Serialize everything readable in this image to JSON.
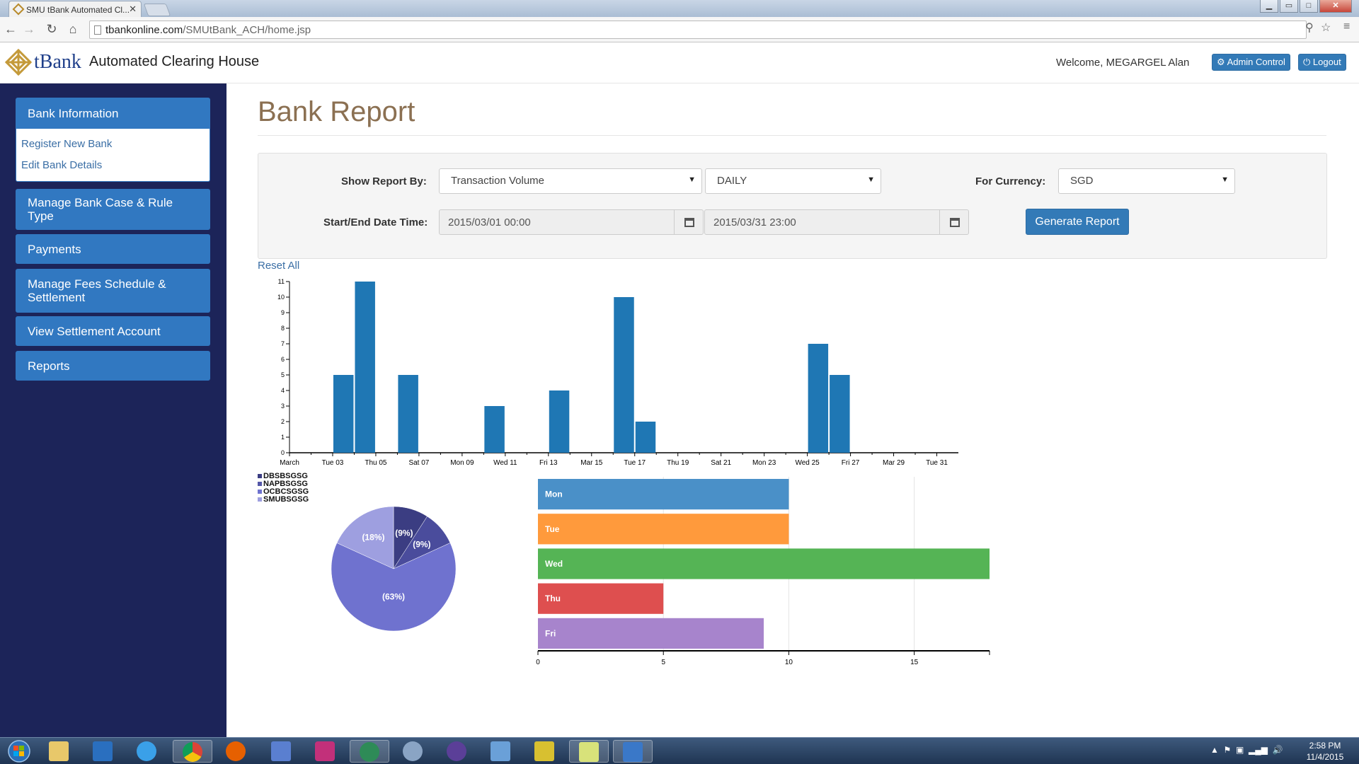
{
  "browser": {
    "tab_title": "SMU tBank Automated Cl...",
    "url_host": "tbankonline.com",
    "url_path": "/SMUtBank_ACH/home.jsp"
  },
  "header": {
    "logo_text": "tBank",
    "app_title": "Automated Clearing House",
    "welcome": "Welcome, MEGARGEL Alan",
    "admin_label": "Admin Control",
    "logout_label": "Logout"
  },
  "sidebar": {
    "items": [
      {
        "label": "Bank Information"
      },
      {
        "label": "Manage Bank Case & Rule Type"
      },
      {
        "label": "Payments"
      },
      {
        "label": "Manage Fees Schedule & Settlement"
      },
      {
        "label": "View Settlement Account"
      },
      {
        "label": "Reports"
      }
    ],
    "sub_items": [
      "Register New Bank",
      "Edit Bank Details"
    ]
  },
  "main": {
    "title": "Bank Report",
    "show_report_by_label": "Show Report By:",
    "report_by_value": "Transaction Volume",
    "frequency_value": "DAILY",
    "currency_label": "For Currency:",
    "currency_value": "SGD",
    "date_label": "Start/End Date Time:",
    "start_date": "2015/03/01 00:00",
    "end_date": "2015/03/31 23:00",
    "generate_label": "Generate Report",
    "reset_label": "Reset All"
  },
  "colors": {
    "bar": "#1f77b4",
    "sidebar_bg": "#1c2459",
    "sidebar_item": "#3178c1",
    "title": "#8b7052"
  },
  "chart_data": [
    {
      "type": "bar",
      "x_tick_labels": [
        "March",
        "Tue 03",
        "Thu 05",
        "Sat 07",
        "Mon 09",
        "Wed 11",
        "Fri 13",
        "Mar 15",
        "Tue 17",
        "Thu 19",
        "Sat 21",
        "Mon 23",
        "Wed 25",
        "Fri 27",
        "Mar 29",
        "Tue 31"
      ],
      "x_domain": [
        "2015-03-01",
        "2015-04-01"
      ],
      "points": [
        {
          "date": "2015-03-03",
          "value": 5
        },
        {
          "date": "2015-03-04",
          "value": 11
        },
        {
          "date": "2015-03-06",
          "value": 5
        },
        {
          "date": "2015-03-10",
          "value": 3
        },
        {
          "date": "2015-03-13",
          "value": 4
        },
        {
          "date": "2015-03-16",
          "value": 10
        },
        {
          "date": "2015-03-17",
          "value": 2
        },
        {
          "date": "2015-03-25",
          "value": 7
        },
        {
          "date": "2015-03-26",
          "value": 5
        }
      ],
      "y_ticks": [
        0,
        1,
        2,
        3,
        4,
        5,
        6,
        7,
        8,
        9,
        10,
        11
      ],
      "ylim": [
        0,
        11
      ]
    },
    {
      "type": "pie",
      "legend": [
        "DBSBSGSG",
        "NAPBSGSG",
        "OCBCSGSG",
        "SMUBSGSG"
      ],
      "legend_colors": [
        "#3b3d82",
        "#5457a8",
        "#6f72cf",
        "#9e9fe0"
      ],
      "slices": [
        {
          "name": "DBSBSGSG",
          "percent": 9,
          "label": "(9%)",
          "color": "#3b3d82"
        },
        {
          "name": "NAPBSGSG",
          "percent": 9,
          "label": "(9%)",
          "color": "#4a4c9c"
        },
        {
          "name": "OCBCSGSG",
          "percent": 63,
          "label": "(63%)",
          "color": "#6f72cf"
        },
        {
          "name": "SMUBSGSG",
          "percent": 18,
          "label": "(18%)",
          "color": "#9e9fe0"
        }
      ]
    },
    {
      "type": "bar",
      "orientation": "horizontal",
      "categories": [
        "Mon",
        "Tue",
        "Wed",
        "Thu",
        "Fri"
      ],
      "values": [
        10,
        10,
        18,
        5,
        9
      ],
      "colors": [
        "#4a90c8",
        "#ff9a3c",
        "#55b455",
        "#de4f4f",
        "#a784cc"
      ],
      "x_ticks": [
        0,
        5,
        10,
        15
      ],
      "xlim": [
        0,
        18
      ]
    }
  ],
  "taskbar": {
    "time": "2:58 PM",
    "date": "11/4/2015"
  }
}
